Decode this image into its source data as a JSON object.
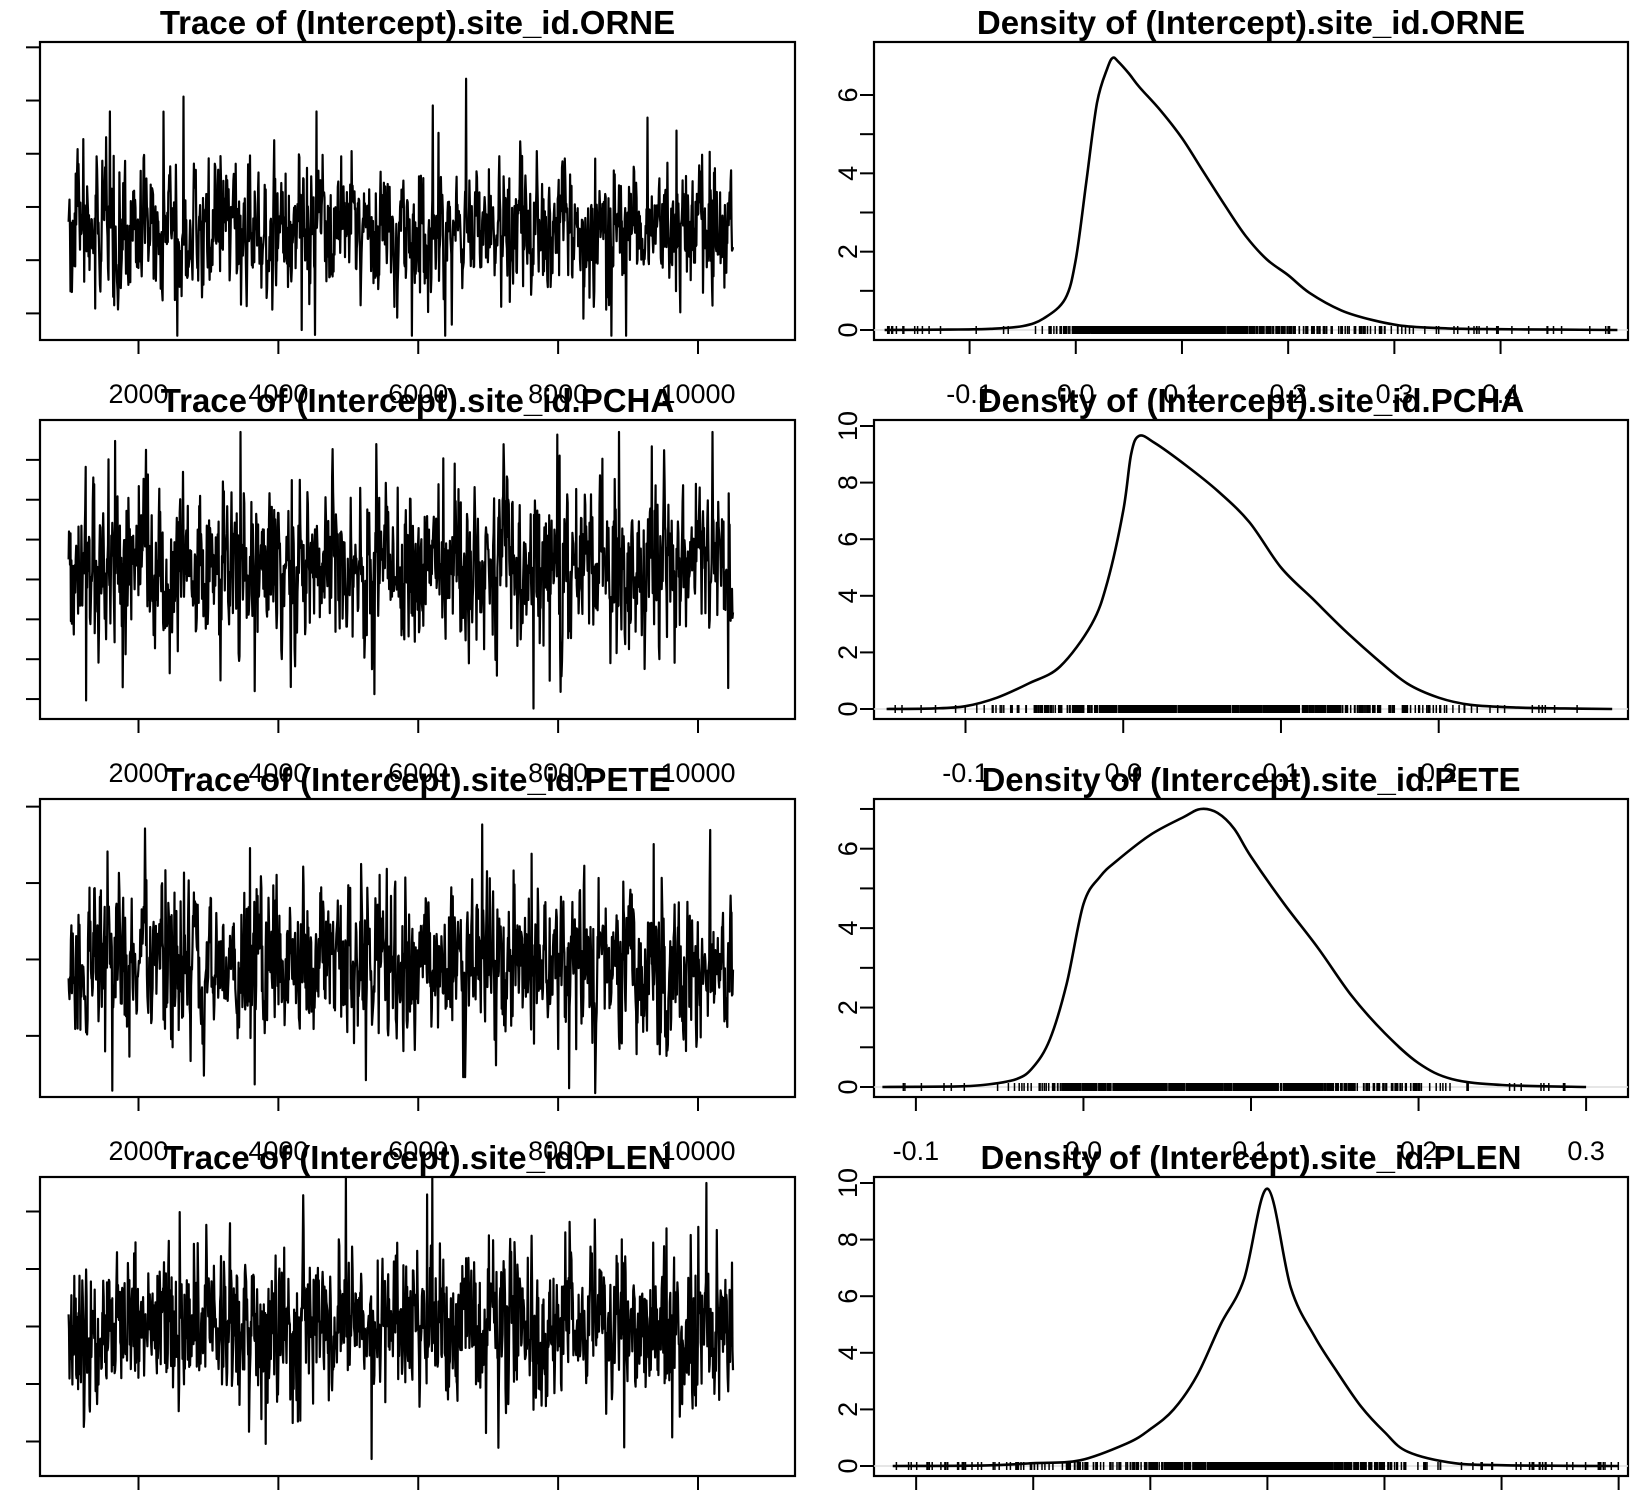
{
  "figure": {
    "layout": "4 rows x 2 columns",
    "panel_pairs": [
      "ORNE",
      "PCHA",
      "PETE",
      "PLEN"
    ]
  },
  "chart_data": [
    {
      "type": "line",
      "kind": "trace",
      "title": "Trace of (Intercept).site_id.ORNE",
      "xlabel": "",
      "ylabel": "",
      "x_ticks": [
        "2000",
        "4000",
        "6000",
        "8000",
        "10000"
      ],
      "xlim": [
        600,
        11400
      ],
      "ylim": [
        0,
        5.6
      ],
      "y_tick_values": [
        0.5,
        1.5,
        2.5,
        3.5,
        4.5,
        5.5
      ],
      "y_ticklabels_visible": false,
      "series": [
        {
          "n": 10000,
          "center": 2.1,
          "spread": 0.55,
          "min": 0.08,
          "max": 5.35
        }
      ]
    },
    {
      "type": "line",
      "kind": "density",
      "title": "Density of (Intercept).site_id.ORNE",
      "xlabel": "",
      "ylabel": "",
      "x_ticks": [
        "-0.1",
        "0.0",
        "0.1",
        "0.2",
        "0.3",
        "0.4"
      ],
      "x_tick_values": [
        -0.1,
        0.0,
        0.1,
        0.2,
        0.3,
        0.4
      ],
      "xlim": [
        -0.19,
        0.52
      ],
      "y_ticks": [
        "0",
        "2",
        "4",
        "6"
      ],
      "y_tick_values": [
        0,
        1,
        2,
        3,
        4,
        5,
        6
      ],
      "ylim": [
        0,
        7.2
      ],
      "rug": true,
      "x": [
        -0.18,
        -0.12,
        -0.08,
        -0.05,
        -0.03,
        -0.01,
        0.0,
        0.01,
        0.02,
        0.03,
        0.035,
        0.04,
        0.05,
        0.06,
        0.08,
        0.1,
        0.12,
        0.14,
        0.16,
        0.18,
        0.2,
        0.22,
        0.25,
        0.28,
        0.31,
        0.35,
        0.4,
        0.45,
        0.51
      ],
      "y": [
        0.0,
        0.01,
        0.03,
        0.1,
        0.3,
        0.8,
        1.8,
        3.8,
        5.8,
        6.7,
        6.95,
        6.85,
        6.55,
        6.2,
        5.6,
        4.9,
        4.05,
        3.2,
        2.4,
        1.8,
        1.4,
        0.95,
        0.5,
        0.25,
        0.1,
        0.04,
        0.02,
        0.01,
        0.0
      ]
    },
    {
      "type": "line",
      "kind": "trace",
      "title": "Trace of (Intercept).site_id.PCHA",
      "xlabel": "",
      "ylabel": "",
      "x_ticks": [
        "2000",
        "4000",
        "6000",
        "8000",
        "10000"
      ],
      "xlim": [
        600,
        11400
      ],
      "ylim": [
        0,
        7.5
      ],
      "y_tick_values": [
        0.5,
        1.5,
        2.5,
        3.5,
        4.5,
        5.5,
        6.5
      ],
      "y_ticklabels_visible": false,
      "series": [
        {
          "n": 10000,
          "center": 3.8,
          "spread": 0.9,
          "min": 0.05,
          "max": 7.2
        }
      ]
    },
    {
      "type": "line",
      "kind": "density",
      "title": "Density of (Intercept).site_id.PCHA",
      "xlabel": "",
      "ylabel": "",
      "x_ticks": [
        "-0.1",
        "0.0",
        "0.1",
        "0.2"
      ],
      "x_tick_values": [
        -0.1,
        0.0,
        0.1,
        0.2
      ],
      "xlim": [
        -0.158,
        0.32
      ],
      "y_ticks": [
        "0",
        "2",
        "4",
        "6",
        "8",
        "10"
      ],
      "y_tick_values": [
        0,
        2,
        4,
        6,
        8,
        10
      ],
      "ylim": [
        0,
        10
      ],
      "rug": true,
      "x": [
        -0.15,
        -0.12,
        -0.1,
        -0.08,
        -0.06,
        -0.04,
        -0.02,
        -0.01,
        0.0,
        0.005,
        0.01,
        0.02,
        0.04,
        0.06,
        0.08,
        0.1,
        0.12,
        0.14,
        0.16,
        0.18,
        0.2,
        0.22,
        0.25,
        0.28,
        0.31
      ],
      "y": [
        0.0,
        0.02,
        0.1,
        0.4,
        0.9,
        1.5,
        3.0,
        4.5,
        7.0,
        9.0,
        9.65,
        9.4,
        8.6,
        7.7,
        6.6,
        5.0,
        3.9,
        2.8,
        1.8,
        0.9,
        0.4,
        0.15,
        0.05,
        0.02,
        0.0
      ]
    },
    {
      "type": "line",
      "kind": "trace",
      "title": "Trace of (Intercept).site_id.PETE",
      "xlabel": "",
      "ylabel": "",
      "x_ticks": [
        "2000",
        "4000",
        "6000",
        "8000",
        "10000"
      ],
      "xlim": [
        600,
        11400
      ],
      "ylim": [
        0,
        3.9
      ],
      "y_tick_values": [
        0.8,
        1.8,
        2.8,
        3.8
      ],
      "y_ticklabels_visible": false,
      "series": [
        {
          "n": 10000,
          "center": 1.75,
          "spread": 0.45,
          "min": 0.02,
          "max": 3.75
        }
      ]
    },
    {
      "type": "line",
      "kind": "density",
      "title": "Density of (Intercept).site_id.PETE",
      "xlabel": "",
      "ylabel": "",
      "x_ticks": [
        "-0.1",
        "0.0",
        "0.1",
        "0.2",
        "0.3"
      ],
      "x_tick_values": [
        -0.1,
        0.0,
        0.1,
        0.2,
        0.3
      ],
      "xlim": [
        -0.125,
        0.325
      ],
      "y_ticks": [
        "0",
        "2",
        "4",
        "6"
      ],
      "y_tick_values": [
        0,
        1,
        2,
        3,
        4,
        5,
        6,
        7
      ],
      "ylim": [
        0,
        7.1
      ],
      "rug": true,
      "x": [
        -0.12,
        -0.08,
        -0.06,
        -0.04,
        -0.03,
        -0.02,
        -0.01,
        0.0,
        0.01,
        0.02,
        0.04,
        0.06,
        0.07,
        0.08,
        0.09,
        0.1,
        0.12,
        0.14,
        0.16,
        0.18,
        0.2,
        0.22,
        0.25,
        0.3
      ],
      "y": [
        0.0,
        0.01,
        0.05,
        0.2,
        0.5,
        1.2,
        2.6,
        4.6,
        5.3,
        5.7,
        6.35,
        6.8,
        7.0,
        6.9,
        6.5,
        5.8,
        4.6,
        3.5,
        2.3,
        1.35,
        0.6,
        0.2,
        0.05,
        0.0
      ]
    },
    {
      "type": "line",
      "kind": "trace",
      "title": "Trace of (Intercept).site_id.PLEN",
      "xlabel": "",
      "ylabel": "",
      "x_ticks": [
        "2000",
        "4000",
        "6000",
        "8000",
        "10000"
      ],
      "xlim": [
        600,
        11400
      ],
      "ylim": [
        0,
        5.2
      ],
      "y_tick_values": [
        0.6,
        1.6,
        2.6,
        3.6,
        4.6
      ],
      "y_ticklabels_visible": false,
      "series": [
        {
          "n": 10000,
          "center": 2.6,
          "spread": 0.6,
          "min": 0.0,
          "max": 5.2
        }
      ]
    },
    {
      "type": "line",
      "kind": "density",
      "title": "Density of (Intercept).site_id.PLEN",
      "xlabel": "",
      "ylabel": "",
      "x_ticks": [],
      "x_tick_values": [
        -0.15,
        -0.1,
        -0.05,
        0.0,
        0.05,
        0.1,
        0.15
      ],
      "xlim": [
        -0.168,
        0.154
      ],
      "y_ticks": [
        "0",
        "2",
        "4",
        "6",
        "8",
        "10"
      ],
      "y_tick_values": [
        0,
        2,
        4,
        6,
        8,
        10
      ],
      "ylim": [
        0,
        10
      ],
      "rug": true,
      "x": [
        -0.16,
        -0.12,
        -0.1,
        -0.08,
        -0.06,
        -0.05,
        -0.04,
        -0.03,
        -0.02,
        -0.01,
        0.0,
        0.01,
        0.02,
        0.03,
        0.04,
        0.05,
        0.06,
        0.08,
        0.1,
        0.12,
        0.15
      ],
      "y": [
        0.0,
        0.02,
        0.1,
        0.2,
        0.8,
        1.3,
        2.0,
        3.2,
        5.0,
        6.6,
        9.8,
        6.3,
        4.6,
        3.3,
        2.1,
        1.2,
        0.5,
        0.1,
        0.03,
        0.01,
        0.0
      ]
    }
  ]
}
